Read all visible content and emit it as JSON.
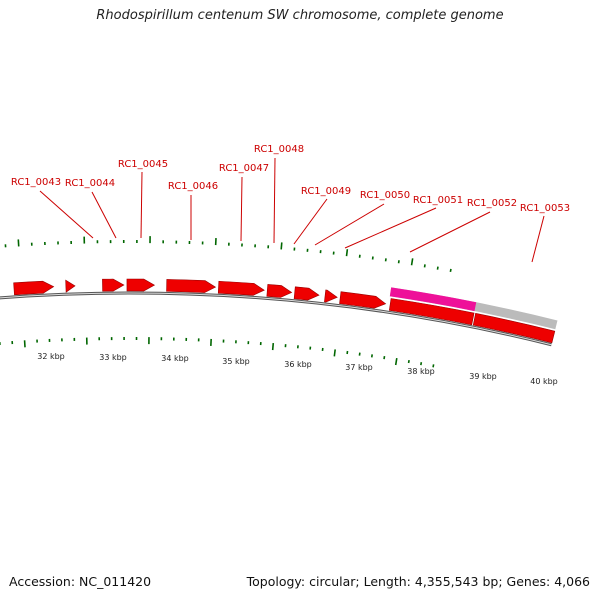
{
  "header": {
    "title": "Rhodospirillum centenum SW chromosome, complete genome"
  },
  "footer": {
    "accession": "Accession: NC_011420",
    "summary": "Topology: circular; Length: 4,355,543 bp; Genes: 4,066"
  },
  "colors": {
    "gene_label": "#cc0000",
    "gene_fill": "#ee0000",
    "gene_stroke": "#990000",
    "highlight_fill": "#ee1199",
    "backbone_gray": "#bbbbbb",
    "tick_green": "#006600",
    "ring_stroke": "#555555"
  },
  "genes": [
    {
      "label": "RC1_0043"
    },
    {
      "label": "RC1_0044"
    },
    {
      "label": "RC1_0045"
    },
    {
      "label": "RC1_0046"
    },
    {
      "label": "RC1_0047"
    },
    {
      "label": "RC1_0048"
    },
    {
      "label": "RC1_0049"
    },
    {
      "label": "RC1_0050"
    },
    {
      "label": "RC1_0051"
    },
    {
      "label": "RC1_0052"
    },
    {
      "label": "RC1_0053"
    }
  ],
  "ruler": {
    "labels": [
      "32 kbp",
      "33 kbp",
      "34 kbp",
      "35 kbp",
      "36 kbp",
      "37 kbp",
      "38 kbp",
      "39 kbp",
      "40 kbp"
    ]
  }
}
